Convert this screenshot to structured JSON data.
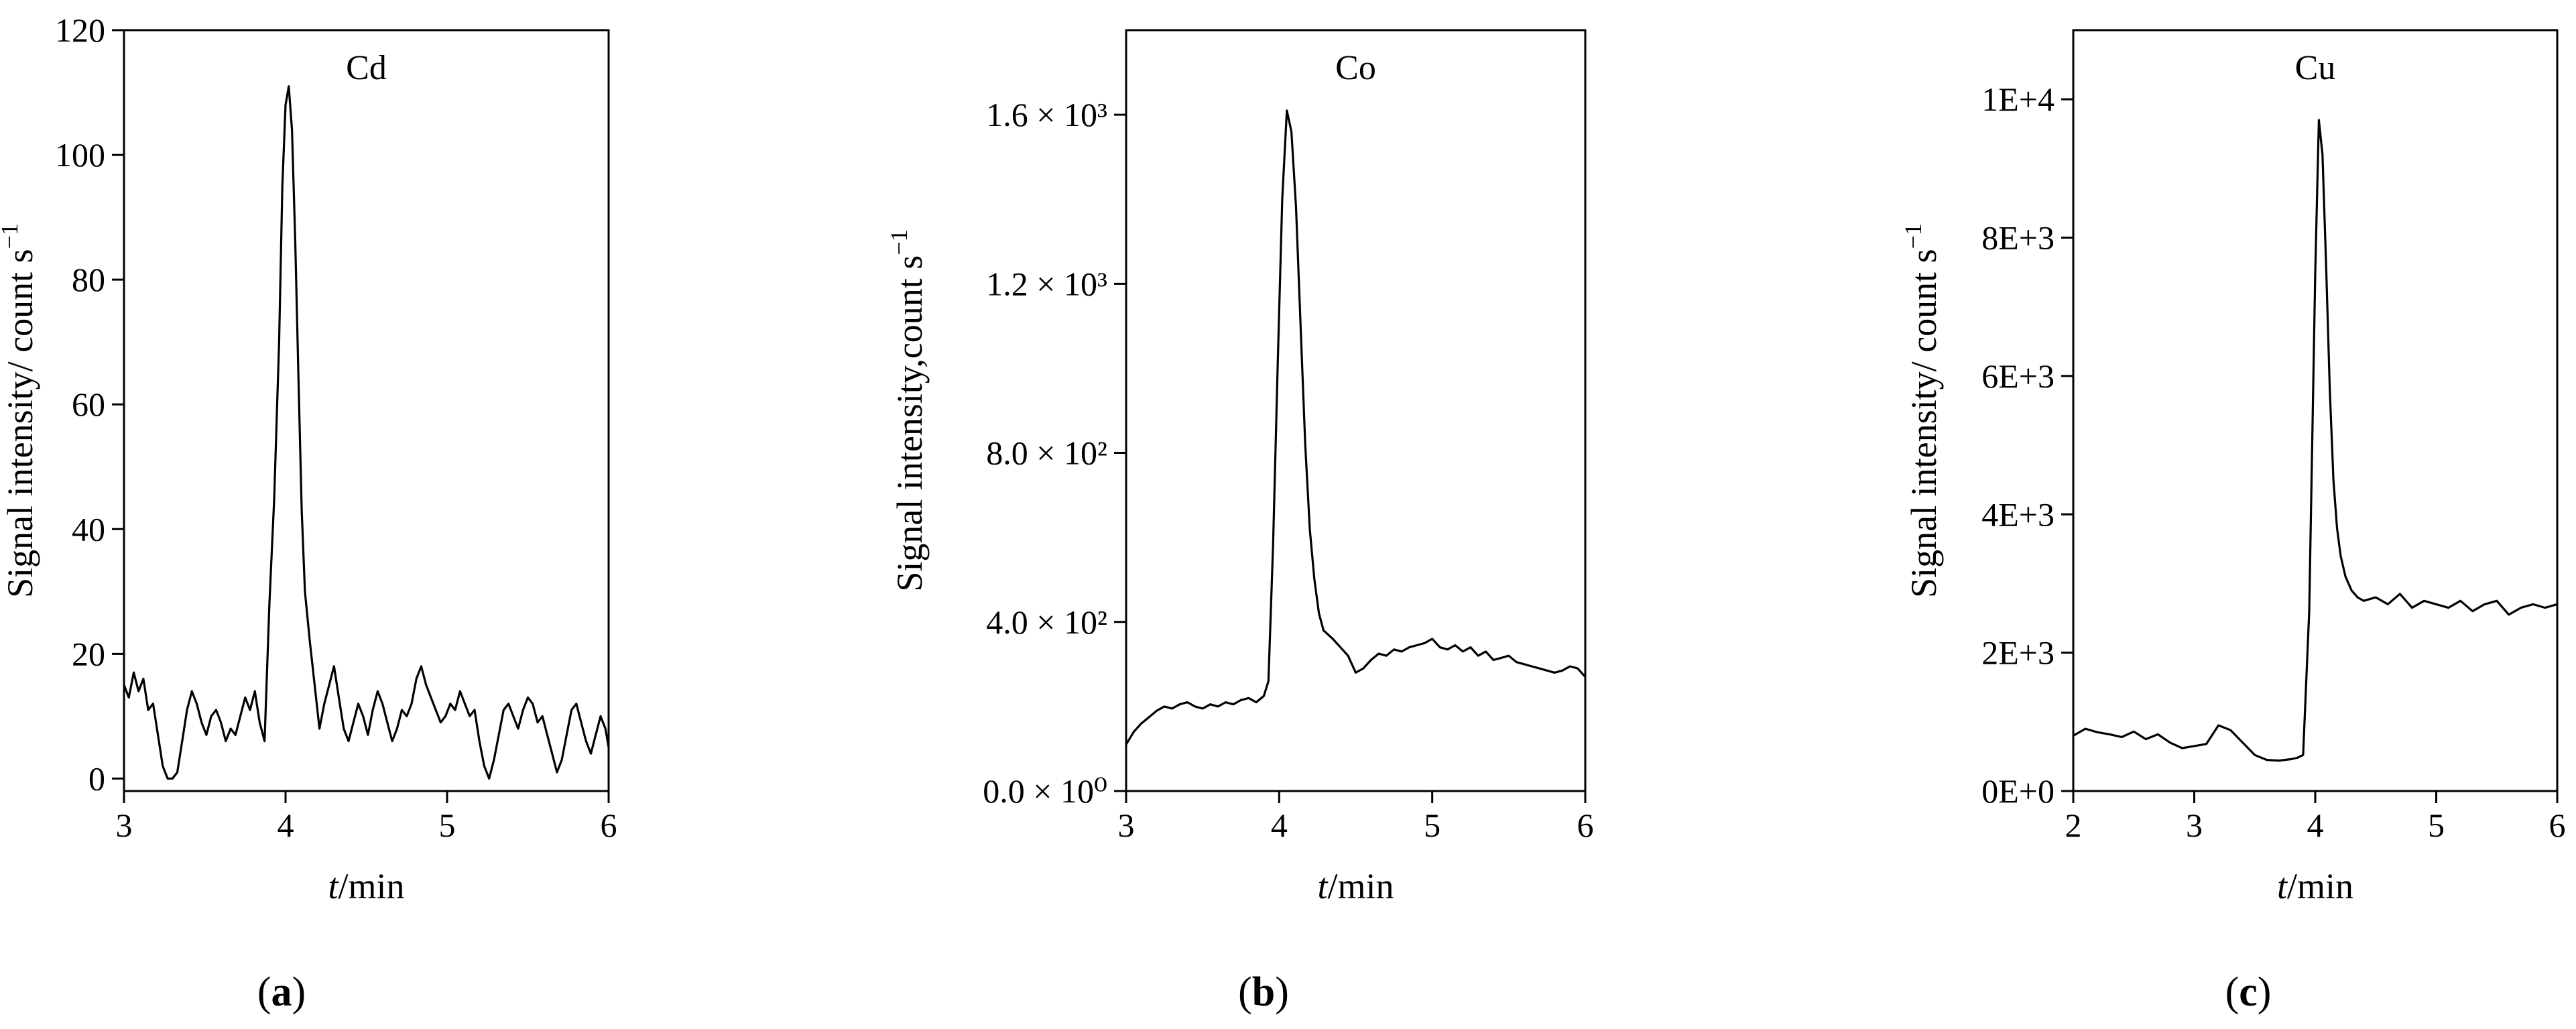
{
  "chart_data": [
    {
      "type": "line",
      "panel_label": "(a)",
      "element": "Cd",
      "title": "Cd",
      "xlabel_italic": "t",
      "xlabel_unit": "/min",
      "ylabel": "Signal intensity/ count s",
      "ylabel_superscript": "−1",
      "xlim": [
        3,
        6
      ],
      "ylim": [
        -2,
        120
      ],
      "xticks": [
        3,
        4,
        5,
        6
      ],
      "xtick_labels": [
        "3",
        "4",
        "5",
        "6"
      ],
      "yticks": [
        0,
        20,
        40,
        60,
        80,
        100,
        120
      ],
      "ytick_labels": [
        "0",
        "20",
        "40",
        "60",
        "80",
        "100",
        "120"
      ],
      "grid": false,
      "series": [
        {
          "name": "Cd",
          "x": [
            3.0,
            3.03,
            3.06,
            3.09,
            3.12,
            3.15,
            3.18,
            3.21,
            3.24,
            3.27,
            3.3,
            3.33,
            3.36,
            3.39,
            3.42,
            3.45,
            3.48,
            3.51,
            3.54,
            3.57,
            3.6,
            3.63,
            3.66,
            3.69,
            3.72,
            3.75,
            3.78,
            3.81,
            3.84,
            3.87,
            3.9,
            3.93,
            3.96,
            3.98,
            4.0,
            4.02,
            4.04,
            4.06,
            4.08,
            4.1,
            4.12,
            4.15,
            4.18,
            4.21,
            4.24,
            4.27,
            4.3,
            4.33,
            4.36,
            4.39,
            4.42,
            4.45,
            4.48,
            4.51,
            4.54,
            4.57,
            4.6,
            4.63,
            4.66,
            4.69,
            4.72,
            4.75,
            4.78,
            4.81,
            4.84,
            4.87,
            4.9,
            4.93,
            4.96,
            4.99,
            5.02,
            5.05,
            5.08,
            5.11,
            5.14,
            5.17,
            5.2,
            5.23,
            5.26,
            5.29,
            5.32,
            5.35,
            5.38,
            5.41,
            5.44,
            5.47,
            5.5,
            5.53,
            5.56,
            5.59,
            5.62,
            5.65,
            5.68,
            5.71,
            5.74,
            5.77,
            5.8,
            5.83,
            5.86,
            5.89,
            5.92,
            5.95,
            5.98,
            6.0
          ],
          "y": [
            15,
            13,
            17,
            14,
            16,
            11,
            12,
            7,
            2,
            0,
            0,
            1,
            6,
            11,
            14,
            12,
            9,
            7,
            10,
            11,
            9,
            6,
            8,
            7,
            10,
            13,
            11,
            14,
            9,
            6,
            28,
            45,
            70,
            95,
            108,
            111,
            104,
            86,
            64,
            43,
            30,
            22,
            15,
            8,
            12,
            15,
            18,
            13,
            8,
            6,
            9,
            12,
            10,
            7,
            11,
            14,
            12,
            9,
            6,
            8,
            11,
            10,
            12,
            16,
            18,
            15,
            13,
            11,
            9,
            10,
            12,
            11,
            14,
            12,
            10,
            11,
            6,
            2,
            0,
            3,
            7,
            11,
            12,
            10,
            8,
            11,
            13,
            12,
            9,
            10,
            7,
            4,
            1,
            3,
            7,
            11,
            12,
            9,
            6,
            4,
            7,
            10,
            8,
            5
          ]
        }
      ]
    },
    {
      "type": "line",
      "panel_label": "(b)",
      "element": "Co",
      "title": "Co",
      "xlabel_italic": "t",
      "xlabel_unit": "/min",
      "ylabel": "Signal intensity,count s",
      "ylabel_superscript": "−1",
      "xlim": [
        3,
        6
      ],
      "ylim": [
        0,
        1800
      ],
      "xticks": [
        3,
        4,
        5,
        6
      ],
      "xtick_labels": [
        "3",
        "4",
        "5",
        "6"
      ],
      "yticks": [
        0,
        400,
        800,
        1200,
        1600
      ],
      "ytick_labels": [
        "0.0 × 10⁰",
        "4.0 × 10²",
        "8.0 × 10²",
        "1.2 × 10³",
        "1.6 × 10³"
      ],
      "grid": false,
      "series": [
        {
          "name": "Co",
          "x": [
            3.0,
            3.05,
            3.1,
            3.15,
            3.2,
            3.25,
            3.3,
            3.35,
            3.4,
            3.45,
            3.5,
            3.55,
            3.6,
            3.65,
            3.7,
            3.75,
            3.8,
            3.85,
            3.9,
            3.93,
            3.96,
            3.99,
            4.02,
            4.05,
            4.08,
            4.11,
            4.14,
            4.17,
            4.2,
            4.23,
            4.26,
            4.29,
            4.32,
            4.35,
            4.4,
            4.45,
            4.5,
            4.55,
            4.6,
            4.65,
            4.7,
            4.75,
            4.8,
            4.85,
            4.9,
            4.95,
            5.0,
            5.05,
            5.1,
            5.15,
            5.2,
            5.25,
            5.3,
            5.35,
            5.4,
            5.45,
            5.5,
            5.55,
            5.6,
            5.65,
            5.7,
            5.75,
            5.8,
            5.85,
            5.9,
            5.95,
            6.0
          ],
          "y": [
            110,
            140,
            160,
            175,
            190,
            200,
            195,
            205,
            210,
            200,
            195,
            205,
            200,
            210,
            205,
            215,
            220,
            210,
            225,
            260,
            580,
            1000,
            1400,
            1610,
            1560,
            1380,
            1100,
            820,
            620,
            500,
            420,
            380,
            370,
            360,
            340,
            320,
            280,
            290,
            310,
            325,
            320,
            335,
            330,
            340,
            345,
            350,
            360,
            340,
            335,
            345,
            330,
            340,
            320,
            330,
            310,
            315,
            320,
            305,
            300,
            295,
            290,
            285,
            280,
            285,
            295,
            290,
            270
          ]
        }
      ]
    },
    {
      "type": "line",
      "panel_label": "(c)",
      "element": "Cu",
      "title": "Cu",
      "xlabel_italic": "t",
      "xlabel_unit": "/min",
      "ylabel": "Signal intensity/ count s",
      "ylabel_superscript": "−1",
      "xlim": [
        2,
        6
      ],
      "ylim": [
        0,
        11000
      ],
      "xticks": [
        2,
        3,
        4,
        5,
        6
      ],
      "xtick_labels": [
        "2",
        "3",
        "4",
        "5",
        "6"
      ],
      "yticks": [
        0,
        2000,
        4000,
        6000,
        8000,
        10000
      ],
      "ytick_labels": [
        "0E+0",
        "2E+3",
        "4E+3",
        "6E+3",
        "8E+3",
        "1E+4"
      ],
      "grid": false,
      "series": [
        {
          "name": "Cu",
          "x": [
            2.0,
            2.1,
            2.2,
            2.3,
            2.4,
            2.5,
            2.6,
            2.7,
            2.8,
            2.9,
            3.0,
            3.1,
            3.2,
            3.3,
            3.4,
            3.5,
            3.6,
            3.7,
            3.8,
            3.85,
            3.9,
            3.95,
            4.0,
            4.03,
            4.06,
            4.09,
            4.12,
            4.15,
            4.18,
            4.21,
            4.25,
            4.3,
            4.35,
            4.4,
            4.5,
            4.6,
            4.7,
            4.8,
            4.9,
            5.0,
            5.1,
            5.2,
            5.3,
            5.4,
            5.5,
            5.6,
            5.7,
            5.8,
            5.9,
            6.0
          ],
          "y": [
            800,
            900,
            850,
            820,
            780,
            860,
            750,
            820,
            700,
            620,
            650,
            680,
            950,
            880,
            700,
            520,
            450,
            440,
            460,
            480,
            520,
            2600,
            7500,
            9700,
            9200,
            7600,
            5800,
            4500,
            3800,
            3400,
            3100,
            2900,
            2800,
            2750,
            2800,
            2700,
            2850,
            2650,
            2750,
            2700,
            2650,
            2750,
            2600,
            2700,
            2750,
            2550,
            2650,
            2700,
            2650,
            2700
          ]
        }
      ]
    }
  ]
}
